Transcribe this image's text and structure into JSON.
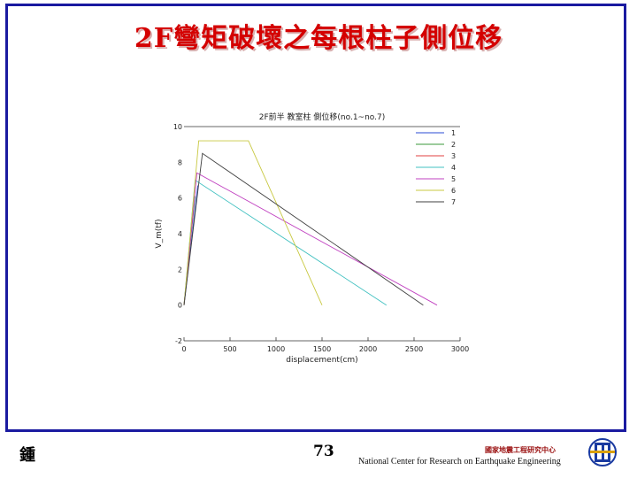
{
  "slide": {
    "title": "2F彎矩破壞之每根柱子側位移",
    "footer_left": "鍾",
    "page_number": "73",
    "org_chinese": "國家地震工程研究中心",
    "org_english": "National Center for Research on Earthquake Engineering",
    "logo_icon": "ncree-logo-icon"
  },
  "chart_data": {
    "type": "line",
    "title": "2F前半 教室柱 側位移(no.1~no.7)",
    "xlabel": "displacement(cm)",
    "ylabel": "V_m(tf)",
    "xlim": [
      0,
      3000
    ],
    "ylim": [
      -2,
      10
    ],
    "xticks": [
      0,
      500,
      1000,
      1500,
      2000,
      2500,
      3000
    ],
    "yticks": [
      -2,
      0,
      2,
      4,
      6,
      8,
      10
    ],
    "legend_position": "top-right",
    "grid": false,
    "series": [
      {
        "name": "1",
        "color": "#2a4bd6",
        "points": [
          [
            0,
            0
          ],
          [
            150,
            6.7
          ]
        ]
      },
      {
        "name": "2",
        "color": "#3a9a3a",
        "points": [
          [
            0,
            0
          ],
          [
            120,
            6.1
          ]
        ]
      },
      {
        "name": "3",
        "color": "#e04040",
        "points": [
          [
            0,
            0
          ],
          [
            100,
            5.2
          ]
        ]
      },
      {
        "name": "4",
        "color": "#40c0c0",
        "points": [
          [
            0,
            0
          ],
          [
            120,
            7.0
          ],
          [
            2200,
            0
          ]
        ]
      },
      {
        "name": "5",
        "color": "#c040c0",
        "points": [
          [
            0,
            0
          ],
          [
            140,
            7.4
          ],
          [
            2750,
            0
          ]
        ]
      },
      {
        "name": "6",
        "color": "#c8c840",
        "points": [
          [
            0,
            0
          ],
          [
            160,
            9.2
          ],
          [
            700,
            9.2
          ],
          [
            1500,
            0
          ]
        ]
      },
      {
        "name": "7",
        "color": "#404040",
        "points": [
          [
            0,
            0
          ],
          [
            200,
            8.5
          ],
          [
            2600,
            0
          ]
        ]
      }
    ]
  }
}
